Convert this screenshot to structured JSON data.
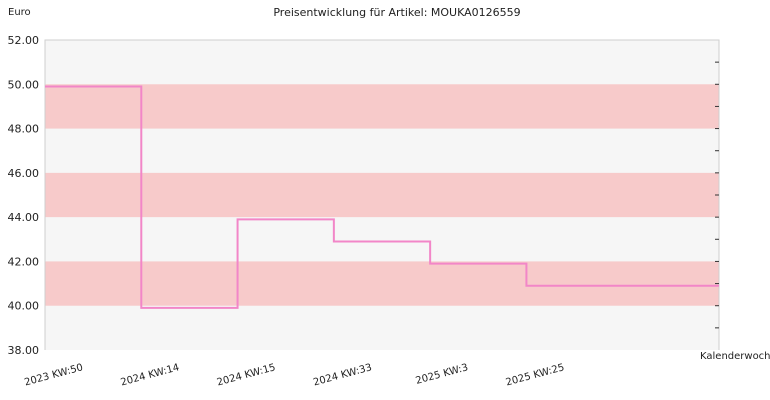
{
  "chart_data": {
    "type": "line",
    "step": true,
    "title": "Preisentwicklung für Artikel: MOUKA0126559",
    "ylabel": "Euro",
    "xlabel": "Kalenderwoche",
    "ylim": [
      38.0,
      52.0
    ],
    "ytick_labels": [
      "38.00",
      "40.00",
      "42.00",
      "44.00",
      "46.00",
      "48.00",
      "50.00",
      "52.00"
    ],
    "categories": [
      "2023 KW:50",
      "2024 KW:14",
      "2024 KW:15",
      "2024 KW:33",
      "2025 KW:3",
      "2025 KW:25"
    ],
    "series": [
      {
        "values": [
          49.9,
          39.9,
          43.9,
          42.9,
          41.9,
          40.9
        ]
      }
    ],
    "band_fill": "#f7caca",
    "plot_bg": "#f6f6f6",
    "line_color": "#f286c8",
    "grid": false
  }
}
